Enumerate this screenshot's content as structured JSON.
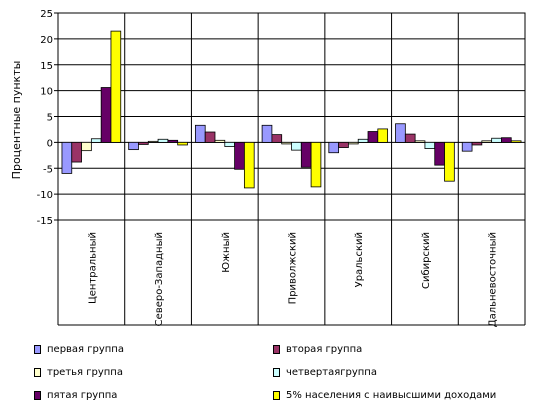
{
  "chart_data": {
    "type": "bar",
    "ylabel": "Процентные пункты",
    "ylim": [
      -15,
      25
    ],
    "yticks": [
      -15,
      -10,
      -5,
      0,
      5,
      10,
      15,
      20,
      25
    ],
    "grid": true,
    "legend_position": "bottom",
    "categories": [
      "Центральный",
      "Северо-Западный",
      "Южный",
      "Приволжский",
      "Уральский",
      "Сибирский",
      "Дальневосточный"
    ],
    "series": [
      {
        "name": "первая группа",
        "color": "#9999ff",
        "values": [
          -6.0,
          -1.4,
          3.3,
          3.3,
          -2.0,
          3.6,
          -1.7
        ]
      },
      {
        "name": "вторая группа",
        "color": "#993366",
        "values": [
          -3.8,
          -0.4,
          2.0,
          1.5,
          -1.0,
          1.6,
          -0.5
        ]
      },
      {
        "name": "третья группа",
        "color": "#ffffcc",
        "values": [
          -1.6,
          0.2,
          0.4,
          -0.3,
          -0.3,
          0.3,
          0.3
        ]
      },
      {
        "name": "четвертаягруппа",
        "color": "#ccffff",
        "values": [
          0.7,
          0.6,
          -0.8,
          -1.5,
          0.6,
          -1.2,
          0.8
        ]
      },
      {
        "name": "пятая группа",
        "color": "#660066",
        "values": [
          10.6,
          0.4,
          -5.2,
          -4.8,
          2.1,
          -4.4,
          0.9
        ]
      },
      {
        "name": "5% населения с наивысшими доходами",
        "color": "#ffff00",
        "values": [
          21.5,
          -0.5,
          -8.8,
          -8.6,
          2.6,
          -7.5,
          0.3
        ]
      }
    ]
  }
}
